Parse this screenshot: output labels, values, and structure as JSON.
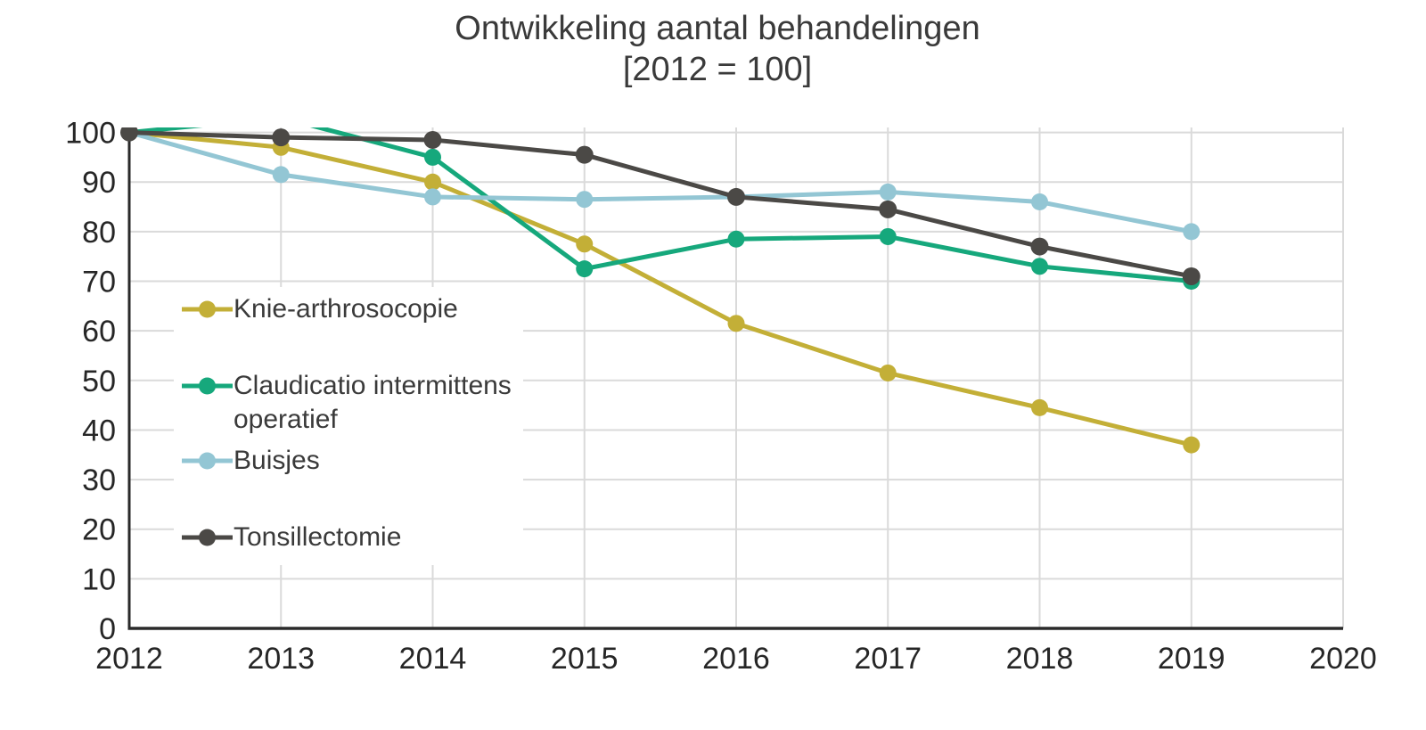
{
  "title": {
    "line1": "Ontwikkeling aantal behandelingen",
    "line2": "[2012 = 100]"
  },
  "chart_data": {
    "type": "line",
    "x": [
      2012,
      2013,
      2014,
      2015,
      2016,
      2017,
      2018,
      2019
    ],
    "x_axis_ticks": [
      2012,
      2013,
      2014,
      2015,
      2016,
      2017,
      2018,
      2019,
      2020
    ],
    "xlim": [
      2012,
      2020
    ],
    "ylim": [
      0,
      100
    ],
    "y_ticks": [
      0,
      10,
      20,
      30,
      40,
      50,
      60,
      70,
      80,
      90,
      100
    ],
    "grid": true,
    "legend_position": "inside-left",
    "title": "Ontwikkeling aantal behandelingen [2012 = 100]",
    "series": [
      {
        "name": "Knie-arthrosocopie",
        "color": "#C3AF37",
        "values": [
          100,
          97,
          90,
          77.5,
          61.5,
          51.5,
          44.5,
          37
        ]
      },
      {
        "name": "Claudicatio intermittens operatief",
        "color": "#16A87C",
        "values": [
          100,
          103,
          95,
          72.5,
          78.5,
          79,
          73,
          70
        ],
        "note": "2013 value plotted above axis max, clipped at plot top"
      },
      {
        "name": "Buisjes",
        "color": "#93C6D4",
        "values": [
          100,
          91.5,
          87,
          86.5,
          87,
          88,
          86,
          80
        ]
      },
      {
        "name": "Tonsillectomie",
        "color": "#4B4946",
        "values": [
          100,
          99,
          98.5,
          95.5,
          87,
          84.5,
          77,
          71
        ]
      }
    ]
  },
  "style": {
    "grid_color": "#DADADA",
    "axis_color": "#2A2A2A",
    "tick_label_color": "#262626",
    "title_color": "#3A3A3A",
    "background": "#FFFFFF"
  }
}
